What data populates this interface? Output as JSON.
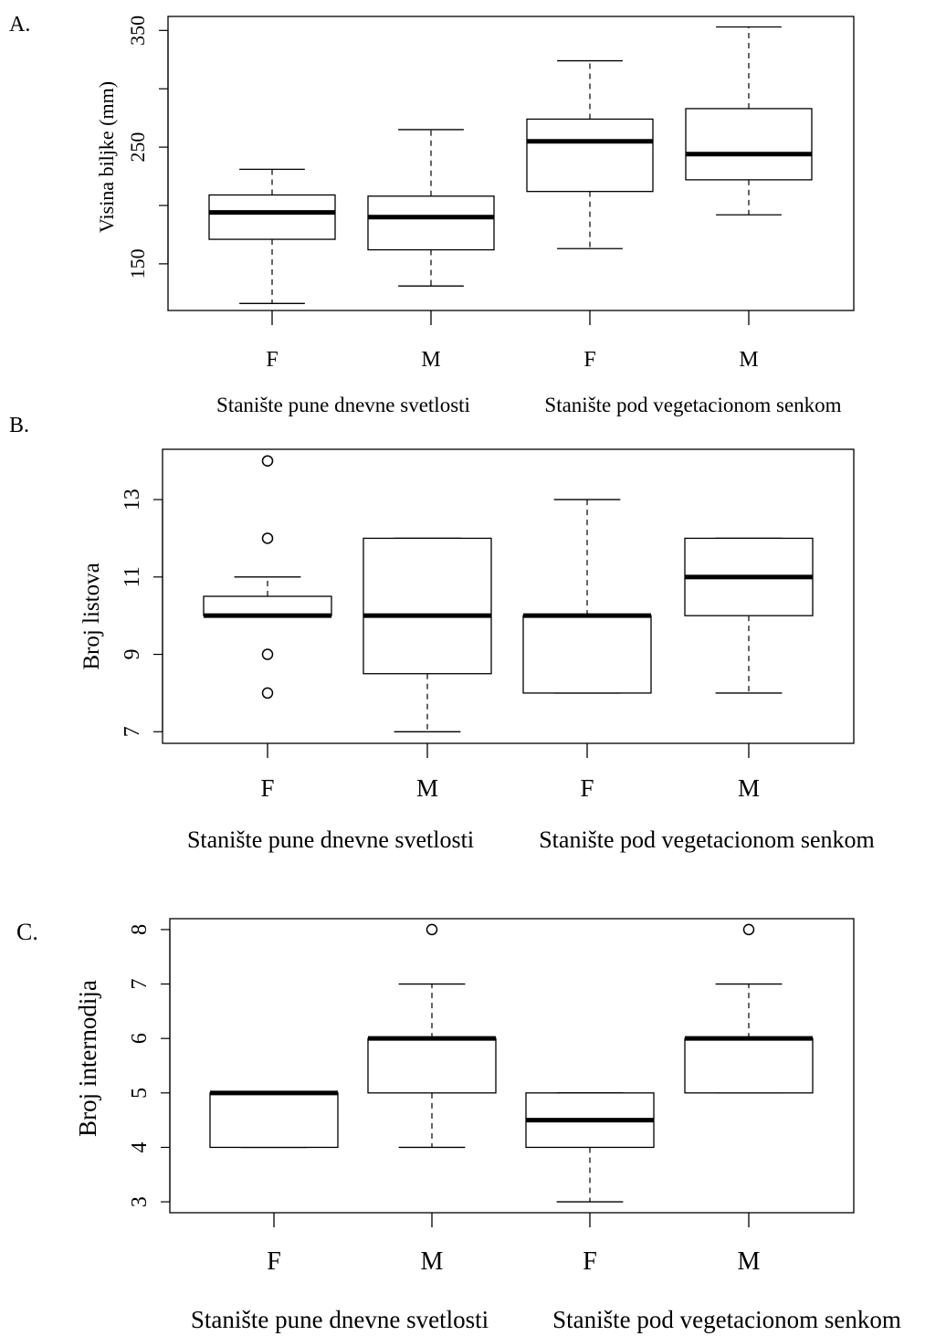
{
  "chart_data": [
    {
      "type": "boxplot",
      "panel_label": "A.",
      "ylabel": "Visina biljke (mm)",
      "yticks": [
        150,
        250,
        350
      ],
      "yminor": [
        200,
        300
      ],
      "ylim": [
        110,
        362
      ],
      "categories": [
        "F",
        "M",
        "F",
        "M"
      ],
      "groups": [
        "Stanište pune dnevne svetlosti",
        "Stanište pod vegetacionom senkom"
      ],
      "boxes": [
        {
          "label": "F",
          "whisker_low": 116,
          "q1": 171,
          "median": 194,
          "q3": 209,
          "whisker_high": 231,
          "outliers": []
        },
        {
          "label": "M",
          "whisker_low": 131,
          "q1": 162,
          "median": 190,
          "q3": 208,
          "whisker_high": 265,
          "outliers": []
        },
        {
          "label": "F",
          "whisker_low": 163,
          "q1": 212,
          "median": 255,
          "q3": 274,
          "whisker_high": 324,
          "outliers": []
        },
        {
          "label": "M",
          "whisker_low": 192,
          "q1": 222,
          "median": 244,
          "q3": 283,
          "whisker_high": 353,
          "outliers": []
        }
      ]
    },
    {
      "type": "boxplot",
      "panel_label": "B.",
      "ylabel": "Broj listova",
      "yticks": [
        7,
        9,
        11,
        13
      ],
      "yminor": [],
      "ylim": [
        6.7,
        14.3
      ],
      "categories": [
        "F",
        "M",
        "F",
        "M"
      ],
      "groups": [
        "Stanište pune dnevne svetlosti",
        "Stanište pod vegetacionom senkom"
      ],
      "boxes": [
        {
          "label": "F",
          "whisker_low": 10,
          "q1": 10,
          "median": 10,
          "q3": 10.5,
          "whisker_high": 11,
          "outliers": [
            14,
            12,
            9,
            8
          ]
        },
        {
          "label": "M",
          "whisker_low": 7,
          "q1": 8.5,
          "median": 10,
          "q3": 12,
          "whisker_high": 12,
          "outliers": []
        },
        {
          "label": "F",
          "whisker_low": 8,
          "q1": 8,
          "median": 10,
          "q3": 10,
          "whisker_high": 13,
          "outliers": []
        },
        {
          "label": "M",
          "whisker_low": 8,
          "q1": 10,
          "median": 11,
          "q3": 12,
          "whisker_high": 12,
          "outliers": []
        }
      ]
    },
    {
      "type": "boxplot",
      "panel_label": "C.",
      "ylabel": "Broj internodija",
      "yticks": [
        3,
        4,
        5,
        6,
        7,
        8
      ],
      "yminor": [],
      "ylim": [
        2.8,
        8.2
      ],
      "categories": [
        "F",
        "M",
        "F",
        "M"
      ],
      "groups": [
        "Stanište pune dnevne svetlosti",
        "Stanište pod vegetacionom senkom"
      ],
      "boxes": [
        {
          "label": "F",
          "whisker_low": 4,
          "q1": 4,
          "median": 5,
          "q3": 5,
          "whisker_high": 5,
          "outliers": []
        },
        {
          "label": "M",
          "whisker_low": 4,
          "q1": 5,
          "median": 6,
          "q3": 6,
          "whisker_high": 7,
          "outliers": [
            8
          ]
        },
        {
          "label": "F",
          "whisker_low": 3,
          "q1": 4,
          "median": 4.5,
          "q3": 5,
          "whisker_high": 5,
          "outliers": []
        },
        {
          "label": "M",
          "whisker_low": 5,
          "q1": 5,
          "median": 6,
          "q3": 6,
          "whisker_high": 7,
          "outliers": [
            8
          ]
        }
      ]
    }
  ]
}
